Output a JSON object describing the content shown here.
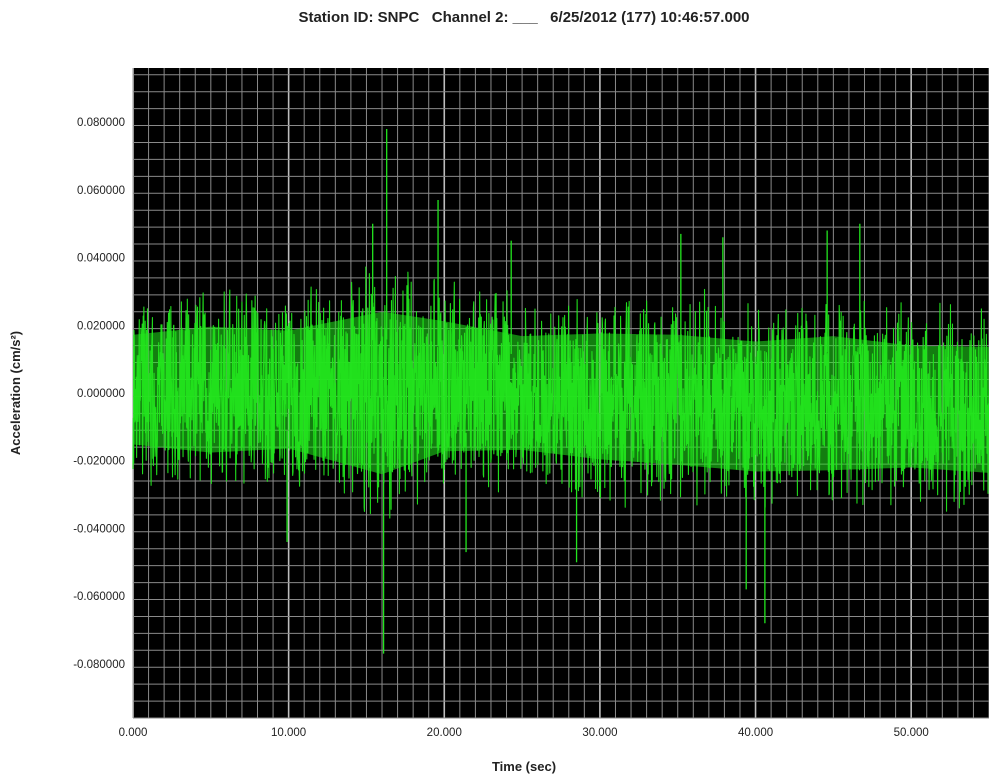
{
  "chart_data": {
    "type": "line",
    "title": "Station ID: SNPC   Channel 2: ___   6/25/2012 (177) 10:46:57.000",
    "xlabel": "Time (sec)",
    "ylabel": "Acceleration (cm/s²)",
    "xlim": [
      0,
      55
    ],
    "ylim": [
      -0.096,
      0.096
    ],
    "x_ticks": [
      0,
      10,
      20,
      30,
      40,
      50
    ],
    "x_tick_labels": [
      "0.000",
      "10.000",
      "20.000",
      "30.000",
      "40.000",
      "50.000"
    ],
    "y_ticks": [
      0.08,
      0.06,
      0.04,
      0.02,
      0,
      -0.02,
      -0.04,
      -0.06,
      -0.08
    ],
    "y_tick_labels": [
      "0.080000",
      "0.060000",
      "0.040000",
      "0.020000",
      "0.000000",
      "-0.020000",
      "-0.040000",
      "-0.060000",
      "-0.080000"
    ],
    "grid": true,
    "series": [
      {
        "name": "",
        "color": "#22e61e",
        "envelope": {
          "x": [
            0,
            5,
            10,
            16,
            20,
            25,
            30,
            35,
            40,
            45,
            50,
            55
          ],
          "upper": [
            0.028,
            0.032,
            0.03,
            0.04,
            0.034,
            0.028,
            0.03,
            0.03,
            0.028,
            0.03,
            0.026,
            0.026
          ],
          "lower": [
            -0.026,
            -0.03,
            -0.028,
            -0.04,
            -0.03,
            -0.028,
            -0.032,
            -0.034,
            -0.036,
            -0.036,
            -0.034,
            -0.036
          ]
        },
        "peaks": [
          {
            "x": 16.3,
            "y": 0.078
          },
          {
            "x": 16.1,
            "y": -0.077
          },
          {
            "x": 19.6,
            "y": 0.057
          },
          {
            "x": 15.4,
            "y": 0.05
          },
          {
            "x": 40.6,
            "y": -0.068
          },
          {
            "x": 39.4,
            "y": -0.058
          },
          {
            "x": 44.6,
            "y": 0.048
          },
          {
            "x": 24.3,
            "y": 0.045
          },
          {
            "x": 35.2,
            "y": 0.047
          },
          {
            "x": 37.9,
            "y": 0.046
          },
          {
            "x": 21.4,
            "y": -0.047
          },
          {
            "x": 28.5,
            "y": -0.05
          },
          {
            "x": 46.7,
            "y": 0.05
          },
          {
            "x": 9.9,
            "y": -0.044
          }
        ]
      }
    ]
  }
}
